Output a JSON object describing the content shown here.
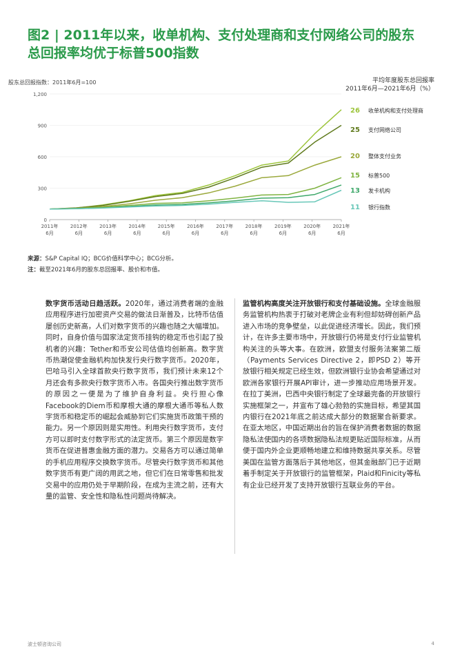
{
  "figure": {
    "title_line1": "图2 | 2011年以来，收单机构、支付处理商和支付网络公司的股东",
    "title_line2": "总回报率均优于标普500指数"
  },
  "chart_data": {
    "type": "line",
    "ylabel": "股东总回报指数：2011年6月=100",
    "right_title_line1": "平均年度股东总回报率",
    "right_title_line2": "2011年6月—2021年6月（%）",
    "ylim": [
      0,
      1200
    ],
    "yticks": [
      "0",
      "300",
      "600",
      "900",
      "1,200"
    ],
    "xticks": [
      {
        "year": "2011年",
        "month": "6月"
      },
      {
        "year": "2012年",
        "month": "6月"
      },
      {
        "year": "2013年",
        "month": "6月"
      },
      {
        "year": "2014年",
        "month": "6月"
      },
      {
        "year": "2015年",
        "month": "6月"
      },
      {
        "year": "2016年",
        "month": "6月"
      },
      {
        "year": "2017年",
        "month": "6月"
      },
      {
        "year": "2018年",
        "month": "6月"
      },
      {
        "year": "2019年",
        "month": "6月"
      },
      {
        "year": "2020年",
        "month": "6月"
      },
      {
        "year": "2021年",
        "month": "6月"
      }
    ],
    "series": [
      {
        "name": "收单机构和支付处理商",
        "tsr": "26",
        "color": "#9cc43a",
        "values": [
          100,
          110,
          140,
          180,
          230,
          260,
          330,
          420,
          520,
          560,
          820,
          1050
        ]
      },
      {
        "name": "支付网络公司",
        "tsr": "25",
        "color": "#5f7a1c",
        "values": [
          100,
          112,
          135,
          175,
          220,
          250,
          310,
          400,
          500,
          540,
          740,
          900
        ]
      },
      {
        "name": "整体支付业务",
        "tsr": "20",
        "color": "#9aa83a",
        "values": [
          100,
          108,
          125,
          150,
          185,
          210,
          255,
          320,
          400,
          420,
          520,
          600
        ]
      },
      {
        "name": "标普500",
        "tsr": "15",
        "color": "#7fb341",
        "values": [
          100,
          108,
          118,
          135,
          155,
          160,
          180,
          205,
          235,
          240,
          300,
          400
        ]
      },
      {
        "name": "发卡机构",
        "tsr": "13",
        "color": "#3ea86a",
        "values": [
          100,
          105,
          112,
          125,
          140,
          145,
          160,
          180,
          205,
          210,
          240,
          330
        ]
      },
      {
        "name": "银行指数",
        "tsr": "11",
        "color": "#67c7b8",
        "values": [
          100,
          104,
          110,
          120,
          130,
          135,
          148,
          165,
          180,
          165,
          170,
          280
        ]
      }
    ]
  },
  "notes": {
    "source_label": "来源：",
    "source_text": "S&P Capital IQ；BCG价值科学中心；BCG分析。",
    "note_label": "注：",
    "note_text": "截至2021年6月的股东总回报率、股价和市值。"
  },
  "body": {
    "left_lead": "数字货币活动日趋活跃。",
    "left_text": "2020年，通过消费者端的金融应用程序进行加密资产交易的做法日渐普及，比特币估值屡创历史新高，人们对数字货币的兴趣也随之大幅增加。同时，自身价值与国家法定货币挂钩的稳定币也引起了投机者的兴趣：Tether和币安公司估值均创新高。数字货币热潮促使金融机构加快发行央行数字货币。2020年，巴哈马引入全球首款央行数字货币，我们预计未来12个月还会有多款央行数字货币入市。各国央行推出数字货币的原因之一便是为了维护自身利益。央行担心像Facebook的Diem币和摩根大通的摩根大通币等私人数字货币和稳定币的崛起会威胁到它们实施货币政策干预的能力。另一个原因则是实用性。利用央行数字货币，支付方可以即时支付数字形式的法定货币。第三个原因是数字货币在促进普惠金融方面的潜力。交易各方可以通过简单的手机应用程序交换数字货币。尽管央行数字货币和其他数字货币有更广阔的用武之地，但它们在日常零售和批发交易中的应用仍处于早期阶段，在成为主流之前，还有大量的监管、安全性和隐私性问题尚待解决。",
    "right_lead": "监管机构高度关注开放银行和支付基础设施。",
    "right_text": "全球金融服务监管机构热衷于打破对老牌企业有利但却妨碍创新产品进入市场的竞争壁垒，以此促进经济增长。因此，我们预计，在许多主要市场中，开放银行仍将是支付行业监管机构关注的头等大事。在欧洲，欧盟支付服务法案第二版（Payments Services Directive 2，即PSD 2）等开放银行相关规定已经生效，但欧洲银行业协会希望通过对欧洲各家银行开展API审计，进一步推动应用场景开发。在拉丁美洲，巴西中央银行制定了全球最完备的开放银行实施框架之一，并宣布了雄心勃勃的实施目标，希望其国内银行在2021年底之前达成大部分的数据聚合新要求。在亚太地区，中国近期出台的旨在保护消费者数据的数据隐私法使国内的各项数据隐私法规更贴近国际标准，从而便于国内外企业更顺畅地建立和维持数据共享关系。尽管美国在监管方面落后于其他地区，但其金融部门已于近期着手制定关于开放银行的监管框架，Plaid和Finicity等私有企业已经开发了支持开放银行互联业务的平台。"
  },
  "footer": {
    "left": "波士顿咨询公司",
    "page": "4"
  }
}
